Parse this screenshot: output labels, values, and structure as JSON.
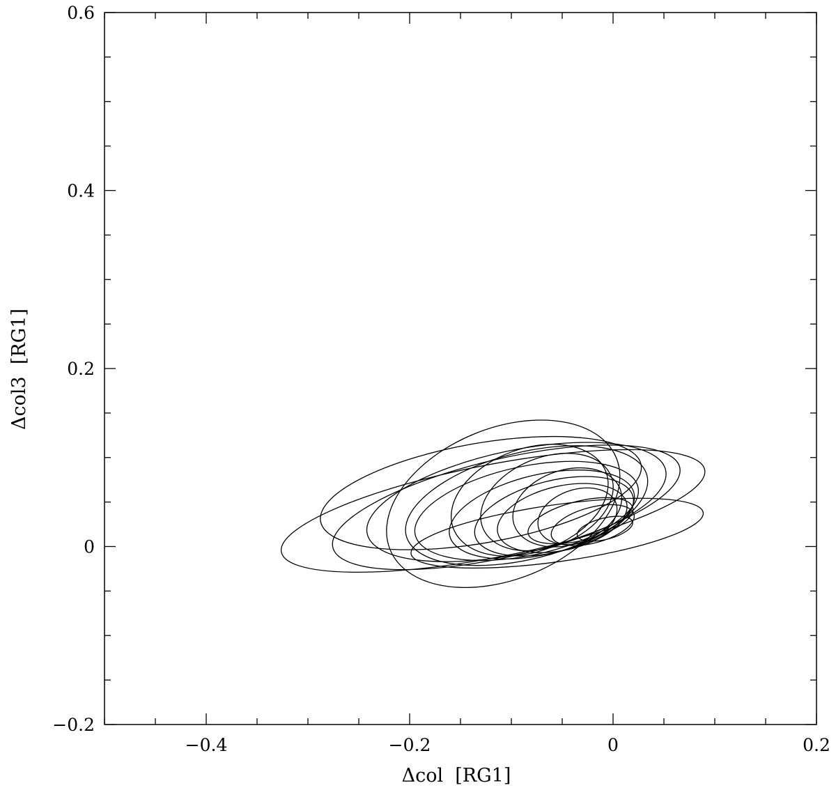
{
  "chart_data": {
    "type": "scatter",
    "title": "",
    "xlabel": "Δcol  [RG1]",
    "ylabel": "Δcol3  [RG1]",
    "xlim": [
      -0.5,
      0.2
    ],
    "ylim": [
      -0.2,
      0.6
    ],
    "grid": false,
    "x_ticks": [
      {
        "value": -0.4,
        "label": "−0.4"
      },
      {
        "value": -0.2,
        "label": "−0.2"
      },
      {
        "value": 0,
        "label": "0"
      },
      {
        "value": 0.2,
        "label": "0.2"
      }
    ],
    "y_ticks": [
      {
        "value": -0.2,
        "label": "−0.2"
      },
      {
        "value": 0,
        "label": "0"
      },
      {
        "value": 0.2,
        "label": "0.2"
      },
      {
        "value": 0.4,
        "label": "0.4"
      },
      {
        "value": 0.6,
        "label": "0.6"
      }
    ],
    "x_minor_step": 0.05,
    "y_minor_step": 0.05,
    "ellipses": [
      {
        "cx": -0.118,
        "cy": 0.04,
        "rx": 0.212,
        "ry": 0.052,
        "angle": -11
      },
      {
        "cx": -0.108,
        "cy": 0.048,
        "rx": 0.12,
        "ry": 0.085,
        "angle": -22
      },
      {
        "cx": -0.085,
        "cy": 0.046,
        "rx": 0.122,
        "ry": 0.06,
        "angle": -14
      },
      {
        "cx": -0.095,
        "cy": 0.05,
        "rx": 0.15,
        "ry": 0.058,
        "angle": -12
      },
      {
        "cx": -0.105,
        "cy": 0.044,
        "rx": 0.175,
        "ry": 0.055,
        "angle": -13
      },
      {
        "cx": -0.085,
        "cy": 0.04,
        "rx": 0.112,
        "ry": 0.05,
        "angle": -12
      },
      {
        "cx": -0.07,
        "cy": 0.036,
        "rx": 0.093,
        "ry": 0.045,
        "angle": -13
      },
      {
        "cx": -0.058,
        "cy": 0.034,
        "rx": 0.08,
        "ry": 0.04,
        "angle": -14
      },
      {
        "cx": -0.05,
        "cy": 0.032,
        "rx": 0.065,
        "ry": 0.036,
        "angle": -13
      },
      {
        "cx": -0.032,
        "cy": 0.029,
        "rx": 0.053,
        "ry": 0.022,
        "angle": -14
      },
      {
        "cx": -0.045,
        "cy": 0.044,
        "rx": 0.055,
        "ry": 0.042,
        "angle": -18
      },
      {
        "cx": -0.082,
        "cy": 0.052,
        "rx": 0.08,
        "ry": 0.058,
        "angle": -20
      },
      {
        "cx": -0.065,
        "cy": 0.05,
        "rx": 0.068,
        "ry": 0.05,
        "angle": -22
      },
      {
        "cx": -0.02,
        "cy": 0.024,
        "rx": 0.042,
        "ry": 0.02,
        "angle": -15
      },
      {
        "cx": -0.035,
        "cy": 0.034,
        "rx": 0.04,
        "ry": 0.03,
        "angle": -18
      },
      {
        "cx": -0.008,
        "cy": 0.02,
        "rx": 0.028,
        "ry": 0.012,
        "angle": -14
      },
      {
        "cx": -0.055,
        "cy": 0.015,
        "rx": 0.145,
        "ry": 0.032,
        "angle": -8
      },
      {
        "cx": -0.13,
        "cy": 0.06,
        "rx": 0.16,
        "ry": 0.056,
        "angle": -10
      }
    ]
  }
}
